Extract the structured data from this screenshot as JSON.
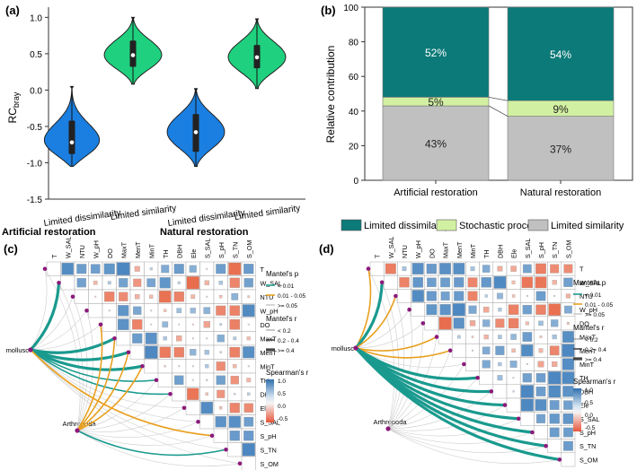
{
  "chart_data": [
    {
      "panel": "(a)",
      "type": "violin",
      "ylabel": "RC",
      "ylabel_sub": "bray",
      "ylim": [
        -1.5,
        1.0
      ],
      "yticks": [
        "1.0",
        "0.5",
        "0.0",
        "-0.5",
        "-1.0",
        "-1.5"
      ],
      "ytick_values": [
        1.0,
        0.5,
        0.0,
        -0.5,
        -1.0,
        -1.5
      ],
      "groups": [
        {
          "label": "Artificial restoration",
          "categories": [
            {
              "label": "Limited dissimilarity",
              "color": "#1a7fe0",
              "min": -1.05,
              "max": 0.05,
              "q1": -0.88,
              "median": -0.72,
              "q3": -0.42
            },
            {
              "label": "Limited similarity",
              "color": "#1fd17f",
              "min": 0.08,
              "max": 1.0,
              "q1": 0.32,
              "median": 0.48,
              "q3": 0.68
            }
          ]
        },
        {
          "label": "Natural restoration",
          "categories": [
            {
              "label": "Limited dissimilarity",
              "color": "#1a7fe0",
              "min": -1.05,
              "max": 0.02,
              "q1": -0.85,
              "median": -0.58,
              "q3": -0.33
            },
            {
              "label": "Limited similarity",
              "color": "#1fd17f",
              "min": 0.02,
              "max": 0.98,
              "q1": 0.3,
              "median": 0.45,
              "q3": 0.62
            }
          ]
        }
      ]
    },
    {
      "panel": "(b)",
      "type": "stacked-bar",
      "ylabel": "Relative contribution",
      "ylim": [
        0,
        100
      ],
      "yticks": [
        "100",
        "80",
        "60",
        "40",
        "20",
        "0"
      ],
      "ytick_values": [
        100,
        80,
        60,
        40,
        20,
        0
      ],
      "categories": [
        "Artificial restoration",
        "Natural restoration"
      ],
      "series": [
        {
          "name": "Limited similarity",
          "color": "#c0c0c0",
          "values": [
            43,
            37
          ],
          "labels": [
            "43%",
            "37%"
          ]
        },
        {
          "name": "Stochastic process",
          "color": "#d2f0a2",
          "values": [
            5,
            9
          ],
          "labels": [
            "5%",
            "9%"
          ]
        },
        {
          "name": "Limited dissimilarity",
          "color": "#0c7a78",
          "values": [
            52,
            54
          ],
          "labels": [
            "52%",
            "54%"
          ]
        }
      ],
      "legend": [
        "Limited dissimilarity",
        "Stochastic process",
        "Limited similarity"
      ]
    },
    {
      "panel": "(c)",
      "type": "mantel-correlation-heatmap",
      "column_labels": [
        "T",
        "W_SAL",
        "NTU",
        "W_pH",
        "DO",
        "MaxT",
        "MenT",
        "MinT",
        "TH",
        "DBH",
        "Ele",
        "S_SAL",
        "S_pH",
        "S_TN",
        "S_OM"
      ],
      "row_labels": [
        "T",
        "W_SAL",
        "NTU",
        "W_pH",
        "DO",
        "MaxT",
        "MenT",
        "MinT",
        "TH",
        "DBH",
        "Ele",
        "S_SAL",
        "S_pH",
        "S_TN",
        "S_OM"
      ],
      "taxa": [
        "mollusc",
        "Arthropoda"
      ],
      "legend": {
        "mantel_p_title": "Mantel's p",
        "mantel_p_items": [
          "< 0.01",
          "0.01 - 0.05",
          ">= 0.05"
        ],
        "mantel_r_title": "Mantel's r",
        "mantel_r_items": [
          "< 0.2",
          "0.2 - 0.4",
          ">= 0.4"
        ],
        "spearman_title": "Spearman's r",
        "spearman_ticks": [
          "1.0",
          "0.5",
          "0.0",
          "-0.5"
        ]
      },
      "mantel_links": [
        {
          "from": "mollusc",
          "to": "W_SAL",
          "p": "<0.01",
          "r": ">=0.4"
        },
        {
          "from": "mollusc",
          "to": "T",
          "p": ">=0.05",
          "r": "<0.2"
        },
        {
          "from": "mollusc",
          "to": "NTU",
          "p": ">=0.05",
          "r": "<0.2"
        },
        {
          "from": "mollusc",
          "to": "W_pH",
          "p": ">=0.05",
          "r": "<0.2"
        },
        {
          "from": "mollusc",
          "to": "DO",
          "p": ">=0.05",
          "r": "<0.2"
        },
        {
          "from": "mollusc",
          "to": "MaxT",
          "p": "<0.01",
          "r": ">=0.4"
        },
        {
          "from": "mollusc",
          "to": "MenT",
          "p": "<0.01",
          "r": ">=0.4"
        },
        {
          "from": "mollusc",
          "to": "MinT",
          "p": "<0.01",
          "r": ">=0.4"
        },
        {
          "from": "mollusc",
          "to": "TH",
          "p": "<0.01",
          "r": "0.2-0.4"
        },
        {
          "from": "mollusc",
          "to": "DBH",
          "p": "<0.01",
          "r": "0.2-0.4"
        },
        {
          "from": "mollusc",
          "to": "Ele",
          "p": ">=0.05",
          "r": "<0.2"
        },
        {
          "from": "mollusc",
          "to": "S_SAL",
          "p": ">=0.05",
          "r": "<0.2"
        },
        {
          "from": "mollusc",
          "to": "S_pH",
          "p": "0.01-0.05",
          "r": "0.2-0.4"
        },
        {
          "from": "mollusc",
          "to": "S_TN",
          "p": ">=0.05",
          "r": "<0.2"
        },
        {
          "from": "mollusc",
          "to": "S_OM",
          "p": ">=0.05",
          "r": "<0.2"
        },
        {
          "from": "Arthropoda",
          "to": "MaxT",
          "p": "0.01-0.05",
          "r": "0.2-0.4"
        },
        {
          "from": "Arthropoda",
          "to": "MenT",
          "p": "0.01-0.05",
          "r": "0.2-0.4"
        },
        {
          "from": "Arthropoda",
          "to": "MinT",
          "p": "0.01-0.05",
          "r": "0.2-0.4"
        },
        {
          "from": "Arthropoda",
          "to": "DO",
          "p": "0.01-0.05",
          "r": "0.2-0.4"
        },
        {
          "from": "Arthropoda",
          "to": "T",
          "p": ">=0.05",
          "r": "<0.2"
        },
        {
          "from": "Arthropoda",
          "to": "W_SAL",
          "p": ">=0.05",
          "r": "<0.2"
        },
        {
          "from": "Arthropoda",
          "to": "NTU",
          "p": ">=0.05",
          "r": "<0.2"
        },
        {
          "from": "Arthropoda",
          "to": "W_pH",
          "p": ">=0.05",
          "r": "<0.2"
        },
        {
          "from": "Arthropoda",
          "to": "TH",
          "p": ">=0.05",
          "r": "<0.2"
        },
        {
          "from": "Arthropoda",
          "to": "DBH",
          "p": ">=0.05",
          "r": "<0.2"
        },
        {
          "from": "Arthropoda",
          "to": "Ele",
          "p": ">=0.05",
          "r": "<0.2"
        },
        {
          "from": "Arthropoda",
          "to": "S_SAL",
          "p": ">=0.05",
          "r": "<0.2"
        },
        {
          "from": "Arthropoda",
          "to": "S_pH",
          "p": ">=0.05",
          "r": "<0.2"
        },
        {
          "from": "Arthropoda",
          "to": "S_TN",
          "p": "<0.01",
          "r": "0.2-0.4"
        },
        {
          "from": "Arthropoda",
          "to": "S_OM",
          "p": ">=0.05",
          "r": "<0.2"
        }
      ]
    },
    {
      "panel": "(d)",
      "type": "mantel-correlation-heatmap",
      "column_labels": [
        "T",
        "W_SAL",
        "NTU",
        "W_pH",
        "DO",
        "MaxT",
        "MenT",
        "MinT",
        "TH",
        "DBH",
        "Ele",
        "S_SAL",
        "S_pH",
        "S_TN",
        "S_OM"
      ],
      "row_labels": [
        "T",
        "W_SAL",
        "NTU",
        "W_pH",
        "DO",
        "MaxT",
        "MenT",
        "MinT",
        "TH",
        "DBH",
        "Ele",
        "S_SAL",
        "S_pH",
        "S_TN",
        "S_OM"
      ],
      "taxa": [
        "mollusc",
        "Arthropoda"
      ],
      "legend": {
        "mantel_p_title": "Mantel's p",
        "mantel_p_items": [
          "< 0.01",
          "0.01 - 0.05",
          ">= 0.05"
        ],
        "mantel_r_title": "Mantel's r",
        "mantel_r_items": [
          "< 0.2",
          "0.2 - 0.4",
          ">= 0.4"
        ],
        "spearman_title": "Spearman's r",
        "spearman_ticks": [
          "1.0",
          "0.5",
          "0.0",
          "-0.5"
        ]
      },
      "mantel_links": [
        {
          "from": "mollusc",
          "to": "T",
          "p": "0.01-0.05",
          "r": "0.2-0.4"
        },
        {
          "from": "mollusc",
          "to": "W_SAL",
          "p": "<0.01",
          "r": ">=0.4"
        },
        {
          "from": "mollusc",
          "to": "NTU",
          "p": "0.01-0.05",
          "r": "0.2-0.4"
        },
        {
          "from": "mollusc",
          "to": "W_pH",
          "p": ">=0.05",
          "r": "<0.2"
        },
        {
          "from": "mollusc",
          "to": "DO",
          "p": ">=0.05",
          "r": "<0.2"
        },
        {
          "from": "mollusc",
          "to": "MaxT",
          "p": "0.01-0.05",
          "r": "0.2-0.4"
        },
        {
          "from": "mollusc",
          "to": "MenT",
          "p": "0.01-0.05",
          "r": "0.2-0.4"
        },
        {
          "from": "mollusc",
          "to": "MinT",
          "p": ">=0.05",
          "r": "<0.2"
        },
        {
          "from": "mollusc",
          "to": "TH",
          "p": "<0.01",
          "r": ">=0.4"
        },
        {
          "from": "mollusc",
          "to": "DBH",
          "p": "<0.01",
          "r": ">=0.4"
        },
        {
          "from": "mollusc",
          "to": "Ele",
          "p": "<0.01",
          "r": ">=0.4"
        },
        {
          "from": "mollusc",
          "to": "S_SAL",
          "p": "<0.01",
          "r": ">=0.4"
        },
        {
          "from": "mollusc",
          "to": "S_pH",
          "p": "<0.01",
          "r": ">=0.4"
        },
        {
          "from": "mollusc",
          "to": "S_TN",
          "p": "<0.01",
          "r": ">=0.4"
        },
        {
          "from": "mollusc",
          "to": "S_OM",
          "p": "<0.01",
          "r": ">=0.4"
        },
        {
          "from": "Arthropoda",
          "to": "T",
          "p": ">=0.05",
          "r": "<0.2"
        },
        {
          "from": "Arthropoda",
          "to": "W_SAL",
          "p": ">=0.05",
          "r": "<0.2"
        },
        {
          "from": "Arthropoda",
          "to": "NTU",
          "p": ">=0.05",
          "r": "<0.2"
        },
        {
          "from": "Arthropoda",
          "to": "W_pH",
          "p": ">=0.05",
          "r": "<0.2"
        },
        {
          "from": "Arthropoda",
          "to": "DO",
          "p": ">=0.05",
          "r": "<0.2"
        },
        {
          "from": "Arthropoda",
          "to": "MaxT",
          "p": ">=0.05",
          "r": "<0.2"
        },
        {
          "from": "Arthropoda",
          "to": "MenT",
          "p": ">=0.05",
          "r": "<0.2"
        },
        {
          "from": "Arthropoda",
          "to": "MinT",
          "p": ">=0.05",
          "r": "<0.2"
        },
        {
          "from": "Arthropoda",
          "to": "TH",
          "p": ">=0.05",
          "r": "<0.2"
        },
        {
          "from": "Arthropoda",
          "to": "DBH",
          "p": ">=0.05",
          "r": "<0.2"
        },
        {
          "from": "Arthropoda",
          "to": "Ele",
          "p": ">=0.05",
          "r": "<0.2"
        },
        {
          "from": "Arthropoda",
          "to": "S_SAL",
          "p": ">=0.05",
          "r": "<0.2"
        },
        {
          "from": "Arthropoda",
          "to": "S_pH",
          "p": ">=0.05",
          "r": "<0.2"
        },
        {
          "from": "Arthropoda",
          "to": "S_TN",
          "p": ">=0.05",
          "r": "<0.2"
        },
        {
          "from": "Arthropoda",
          "to": "S_OM",
          "p": ">=0.05",
          "r": "<0.2"
        }
      ]
    }
  ],
  "colors": {
    "blue_violin": "#1a7fe0",
    "green_violin": "#1fd17f",
    "teal": "#0c7a78",
    "light_green": "#d2f0a2",
    "grey": "#c0c0c0",
    "link_strong": "#1a9a8e",
    "link_mid": "#e8a020",
    "link_weak": "#cccccc",
    "node": "#8b1a7a",
    "pos_corr": "#4a86c0",
    "neg_corr": "#e86a4a"
  }
}
